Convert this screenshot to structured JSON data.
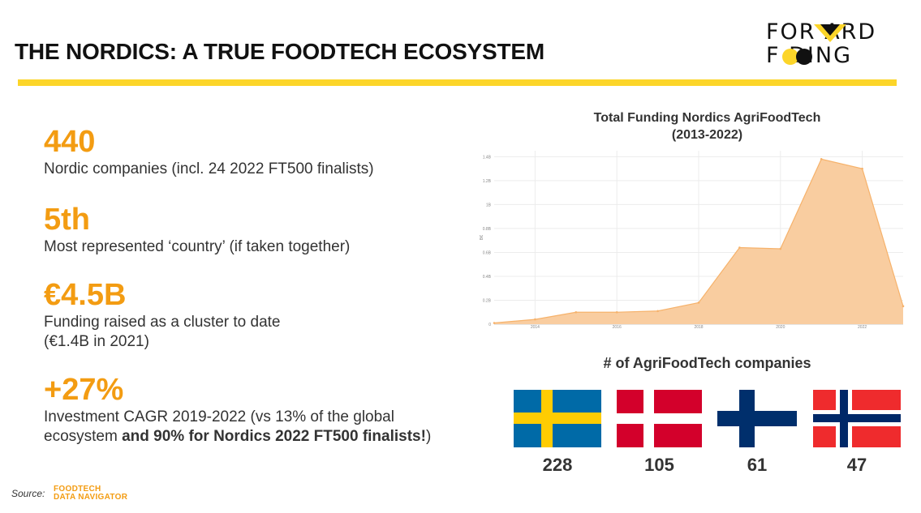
{
  "header": {
    "title": "THE NORDICS: A TRUE FOODTECH ECOSYSTEM",
    "logo_line1": "FOR ARD",
    "logo_line2": "F  DING",
    "logo_alt": "FORWARD FOODING"
  },
  "colors": {
    "accent_orange": "#f39c12",
    "bar_yellow": "#fcd529",
    "area_fill": "#f9cda0",
    "area_line": "#f6b26b",
    "sweden_blue": "#006aa7",
    "sweden_yellow": "#fecc02",
    "denmark_red": "#d3002b",
    "finland_blue": "#002f6c",
    "norway_red": "#ef2b2d",
    "norway_blue": "#002868"
  },
  "stats": [
    {
      "value": "440",
      "desc": "Nordic companies (incl. 24 2022 FT500 finalists)"
    },
    {
      "value": "5th",
      "desc": "Most represented ‘country’ (if taken together)"
    },
    {
      "value": "€4.5B",
      "desc_line1": "Funding raised as a cluster to date",
      "desc_line2": "(€1.4B in 2021)"
    },
    {
      "value": "+27%",
      "desc_line1": "Investment CAGR 2019-2022 (vs 13% of the global",
      "desc_line2_plain": "ecosystem ",
      "desc_line2_bold": "and 90% for Nordics 2022 FT500 finalists!",
      "desc_line2_end": ")"
    }
  ],
  "chart_data": {
    "type": "area",
    "title_line1": "Total Funding Nordics AgriFoodTech",
    "title_line2": "(2013-2022)",
    "ylabel": "B€",
    "x": [
      2013,
      2014,
      2015,
      2016,
      2017,
      2018,
      2019,
      2020,
      2021,
      2022,
      2023
    ],
    "y": [
      0.01,
      0.04,
      0.1,
      0.1,
      0.11,
      0.18,
      0.64,
      0.63,
      1.38,
      1.3,
      0.15
    ],
    "xlim": [
      2013,
      2023
    ],
    "ylim": [
      0,
      1.45
    ],
    "y_ticks": [
      0,
      0.2,
      0.4,
      0.6,
      0.8,
      1.0,
      1.2,
      1.4
    ],
    "y_tick_labels": [
      "0",
      "0.2B",
      "0.4B",
      "0.6B",
      "0.8B",
      "1B",
      "1.2B",
      "1.4B"
    ],
    "x_ticks": [
      2014,
      2016,
      2018,
      2020,
      2022
    ],
    "x_tick_labels": [
      "2014",
      "2016",
      "2018",
      "2020",
      "2022"
    ],
    "grid": true
  },
  "companies": {
    "title": "# of AgriFoodTech companies",
    "countries": [
      {
        "flag": "sweden-flag",
        "count": "228"
      },
      {
        "flag": "denmark-flag",
        "count": "105"
      },
      {
        "flag": "finland-flag",
        "count": "61"
      },
      {
        "flag": "norway-flag",
        "count": "47"
      }
    ]
  },
  "footer": {
    "source_label": "Source:",
    "navigator_line1": "FOODTECH",
    "navigator_line2": "DATA NAVIGATOR"
  }
}
